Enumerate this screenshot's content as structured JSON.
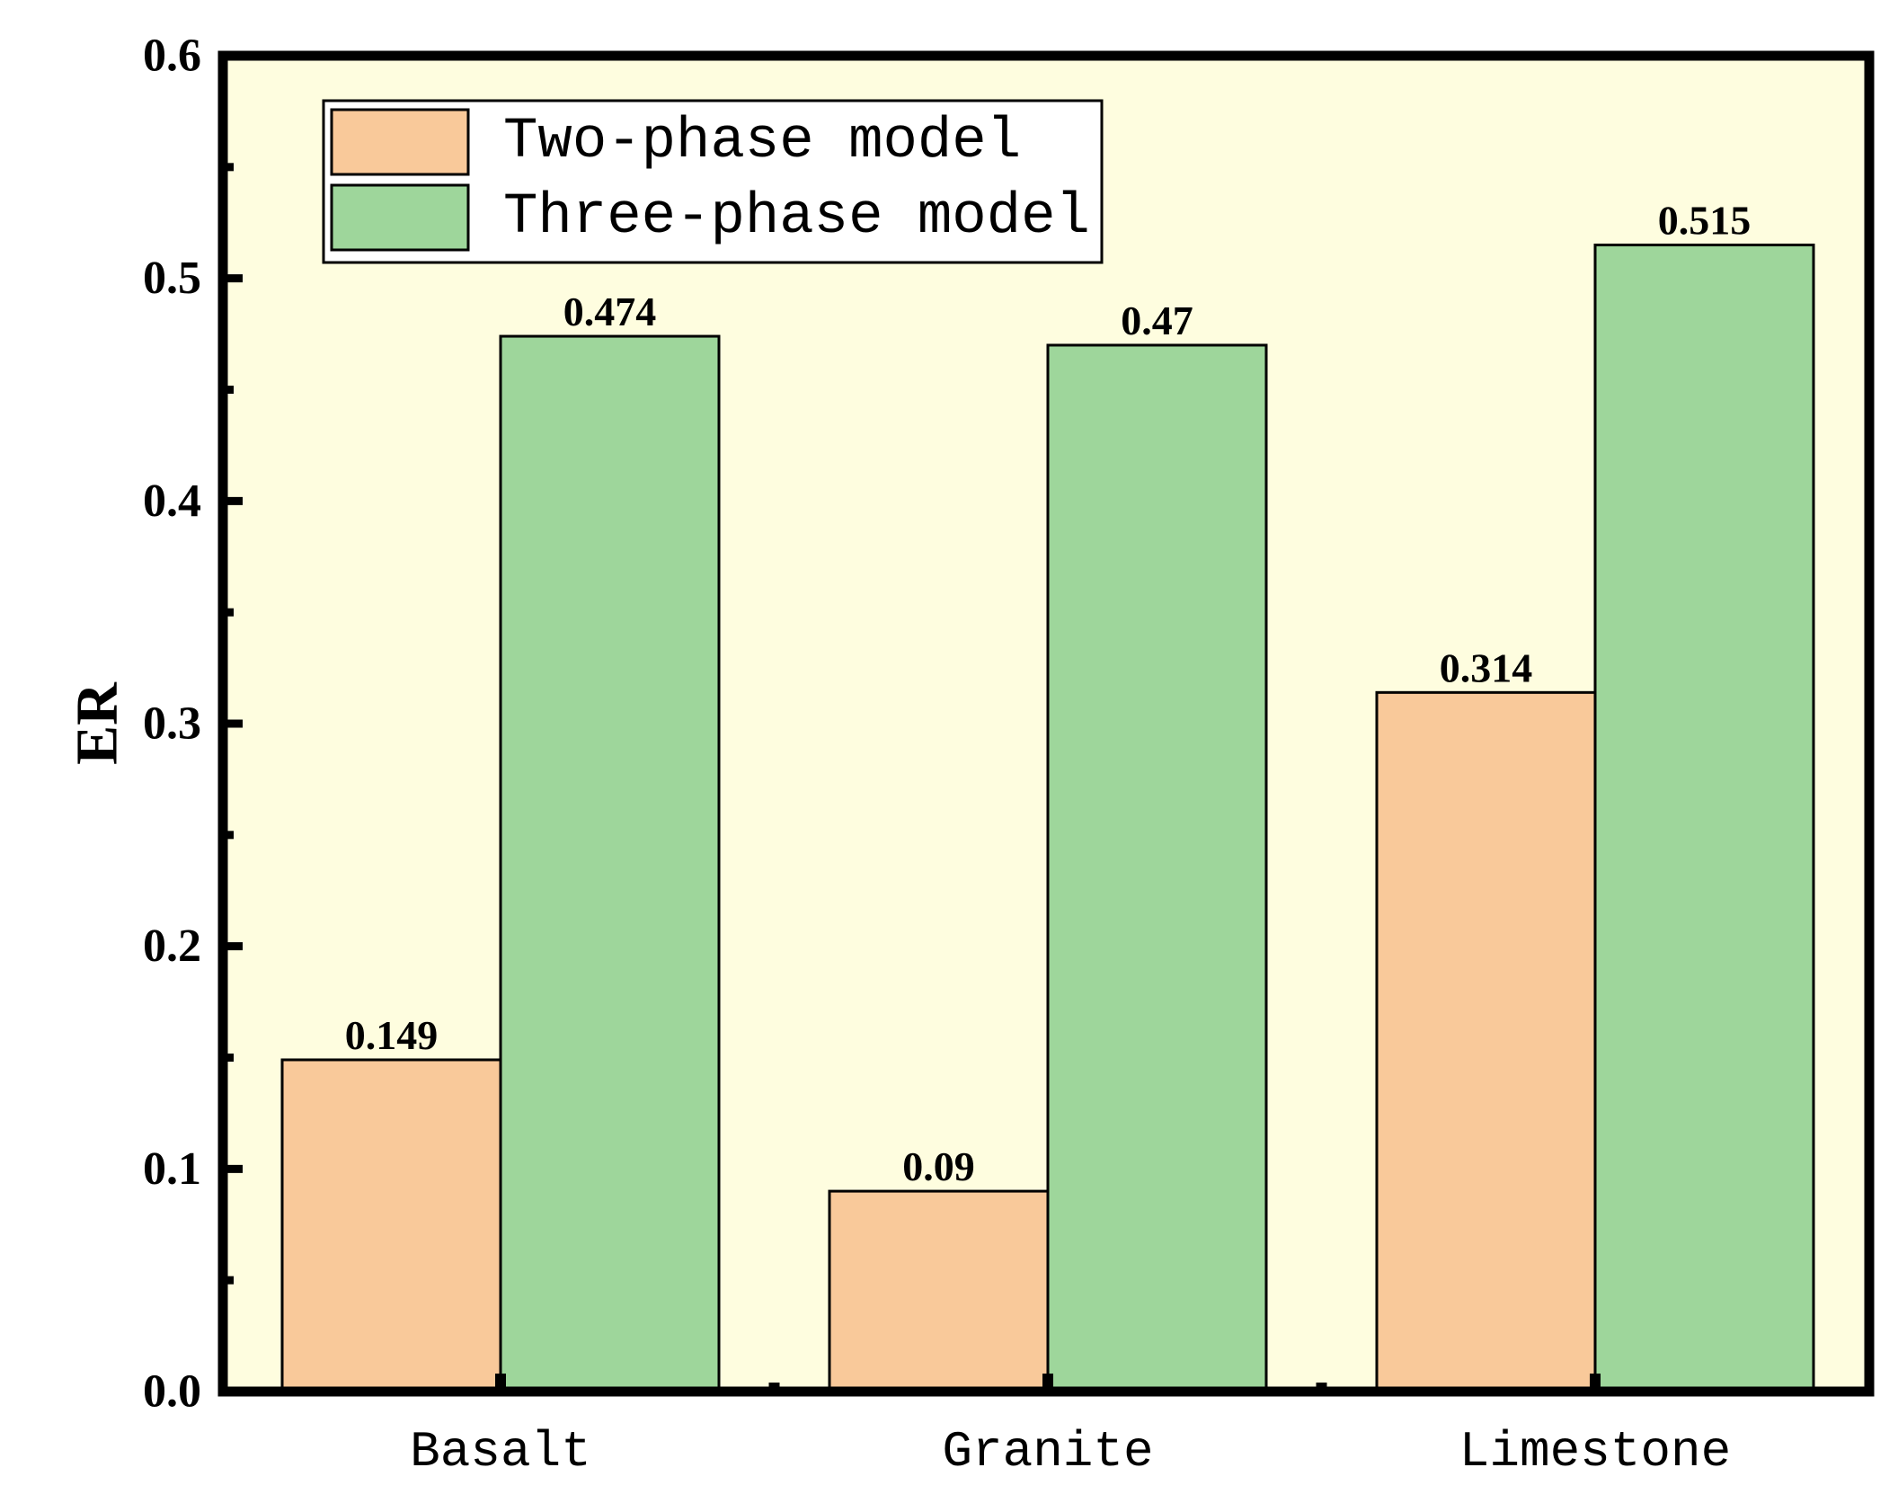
{
  "chart_data": {
    "type": "bar",
    "title": "",
    "xlabel": "",
    "ylabel": "ER",
    "ylim": [
      0,
      0.6
    ],
    "yticks": [
      "0.0",
      "0.1",
      "0.2",
      "0.3",
      "0.4",
      "0.5",
      "0.6"
    ],
    "categories": [
      "Basalt",
      "Granite",
      "Limestone"
    ],
    "series": [
      {
        "name": "Two-phase model",
        "values": [
          0.149,
          0.09,
          0.314
        ],
        "labels": [
          "0.149",
          "0.09",
          "0.314"
        ],
        "color": "#F9C99A"
      },
      {
        "name": "Three-phase model",
        "values": [
          0.474,
          0.47,
          0.515
        ],
        "labels": [
          "0.474",
          "0.47",
          "0.515"
        ],
        "color": "#9ED69B"
      }
    ],
    "plot_background": "#FEFDDF",
    "grid": false,
    "legend_position": "top-left"
  }
}
